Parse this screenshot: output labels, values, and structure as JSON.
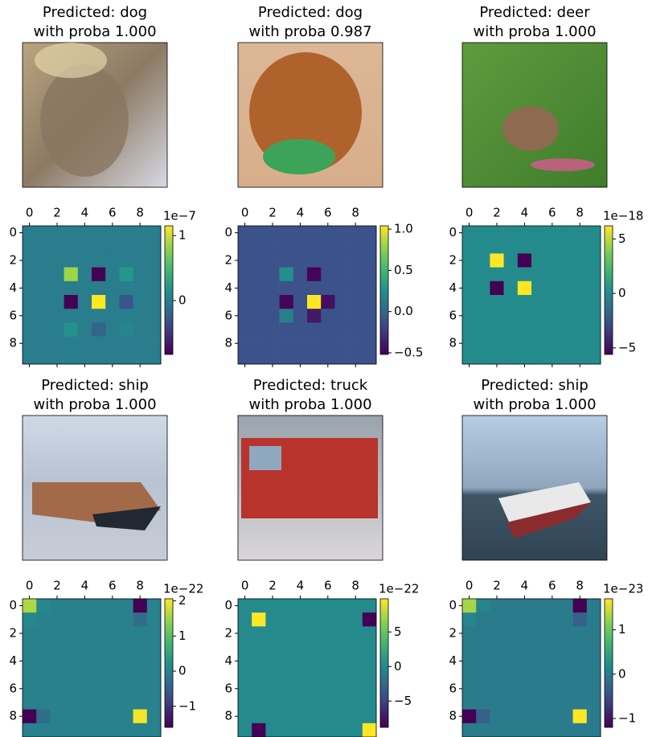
{
  "chart_data": [
    {
      "type": "image",
      "title_lines": [
        "Predicted: dog",
        "with proba 1.000"
      ]
    },
    {
      "type": "image",
      "title_lines": [
        "Predicted: dog",
        "with proba 0.987"
      ]
    },
    {
      "type": "image",
      "title_lines": [
        "Predicted: deer",
        "with proba 1.000"
      ]
    },
    {
      "type": "heatmap",
      "colormap": "viridis",
      "xlim": [
        -0.5,
        9.5
      ],
      "ylim": [
        9.5,
        -0.5
      ],
      "xticks": [
        0,
        2,
        4,
        6,
        8
      ],
      "yticks": [
        0,
        2,
        4,
        6,
        8
      ],
      "z": [
        [
          0,
          0,
          0,
          0,
          0,
          0,
          0,
          0,
          0,
          0
        ],
        [
          0,
          0,
          0,
          0,
          0,
          0,
          0,
          0,
          0,
          0
        ],
        [
          0,
          0,
          0,
          0,
          0,
          0,
          0,
          0,
          0,
          0
        ],
        [
          0,
          0,
          0,
          0.85,
          0,
          -0.83,
          0,
          0.2,
          0,
          0
        ],
        [
          0,
          0,
          0,
          0,
          0,
          0,
          0,
          0,
          0,
          0
        ],
        [
          0,
          0,
          0,
          -0.83,
          0,
          1.15,
          0,
          -0.3,
          0,
          0
        ],
        [
          0,
          0,
          0,
          0,
          0,
          0,
          0,
          0,
          0,
          0
        ],
        [
          0,
          0,
          0,
          0.15,
          0,
          -0.2,
          0,
          0.05,
          0,
          0
        ],
        [
          0,
          0,
          0,
          0,
          0,
          0,
          0,
          0,
          0,
          0
        ],
        [
          0,
          0,
          0,
          0,
          0,
          0,
          0,
          0,
          0,
          0
        ]
      ],
      "colorbar": {
        "lim": [
          -0.83,
          1.15
        ],
        "ticks": [
          0,
          1
        ],
        "offset_label": "1e−7"
      }
    },
    {
      "type": "heatmap",
      "colormap": "viridis",
      "xlim": [
        -0.5,
        9.5
      ],
      "ylim": [
        9.5,
        -0.5
      ],
      "xticks": [
        0,
        2,
        4,
        6,
        8
      ],
      "yticks": [
        0,
        2,
        4,
        6,
        8
      ],
      "z": [
        [
          -0.13,
          -0.13,
          -0.13,
          -0.13,
          -0.13,
          -0.13,
          -0.13,
          -0.13,
          -0.13,
          -0.13
        ],
        [
          -0.13,
          -0.13,
          -0.13,
          -0.13,
          -0.13,
          -0.13,
          -0.13,
          -0.13,
          -0.13,
          -0.13
        ],
        [
          -0.13,
          -0.13,
          -0.13,
          -0.13,
          -0.13,
          -0.13,
          -0.13,
          -0.13,
          -0.13,
          -0.13
        ],
        [
          -0.13,
          -0.13,
          -0.13,
          0.25,
          -0.13,
          -0.5,
          -0.13,
          -0.13,
          -0.13,
          -0.13
        ],
        [
          -0.13,
          -0.13,
          -0.13,
          -0.13,
          -0.13,
          -0.13,
          -0.13,
          -0.13,
          -0.13,
          -0.13
        ],
        [
          -0.13,
          -0.13,
          -0.13,
          -0.5,
          -0.13,
          1.04,
          -0.45,
          -0.13,
          -0.13,
          -0.13
        ],
        [
          -0.13,
          -0.13,
          -0.13,
          0.15,
          -0.13,
          -0.4,
          -0.13,
          -0.13,
          -0.13,
          -0.13
        ],
        [
          -0.13,
          -0.13,
          -0.13,
          -0.13,
          -0.13,
          -0.13,
          -0.13,
          -0.13,
          -0.13,
          -0.13
        ],
        [
          -0.13,
          -0.13,
          -0.13,
          -0.13,
          -0.13,
          -0.13,
          -0.13,
          -0.13,
          -0.13,
          -0.13
        ],
        [
          -0.13,
          -0.13,
          -0.13,
          -0.13,
          -0.13,
          -0.13,
          -0.13,
          -0.13,
          -0.13,
          -0.13
        ]
      ],
      "colorbar": {
        "lim": [
          -0.52,
          1.04
        ],
        "ticks": [
          {
            "value": -0.5,
            "label": "−0.5"
          },
          {
            "value": 0,
            "label": "0.0"
          },
          {
            "value": 0.5,
            "label": "0.5"
          },
          {
            "value": 1,
            "label": "1.0"
          }
        ]
      }
    },
    {
      "type": "heatmap",
      "colormap": "viridis",
      "xlim": [
        -0.5,
        9.5
      ],
      "ylim": [
        9.5,
        -0.5
      ],
      "xticks": [
        0,
        2,
        4,
        6,
        8
      ],
      "yticks": [
        0,
        2,
        4,
        6,
        8
      ],
      "z": [
        [
          0,
          0,
          0,
          0,
          0,
          0,
          0,
          0,
          0,
          0
        ],
        [
          0,
          0,
          0,
          0,
          0,
          0,
          0,
          0,
          0,
          0
        ],
        [
          0,
          0,
          6.2,
          0,
          -5.6,
          0,
          0,
          0,
          0,
          0
        ],
        [
          0,
          0,
          0,
          0,
          0,
          0,
          0,
          0,
          0,
          0
        ],
        [
          0,
          0,
          -5.6,
          0,
          6.2,
          0,
          0,
          0,
          0,
          0
        ],
        [
          0,
          0,
          0,
          0,
          0,
          0,
          0,
          0,
          0,
          0
        ],
        [
          0,
          0,
          0,
          0,
          0,
          0,
          0,
          0,
          0,
          0
        ],
        [
          0,
          0,
          0,
          0,
          0,
          0,
          0,
          0,
          0,
          0
        ],
        [
          0,
          0,
          0,
          0,
          0,
          0,
          0,
          0,
          0,
          0
        ],
        [
          0,
          0,
          0,
          0,
          0,
          0,
          0,
          0,
          0,
          0
        ]
      ],
      "colorbar": {
        "lim": [
          -5.6,
          6.2
        ],
        "ticks": [
          {
            "value": -5,
            "label": "−5"
          },
          0,
          5
        ],
        "offset_label": "1e−18"
      }
    },
    {
      "type": "image",
      "title_lines": [
        "Predicted: ship",
        "with proba 1.000"
      ]
    },
    {
      "type": "image",
      "title_lines": [
        "Predicted: truck",
        "with proba 1.000"
      ]
    },
    {
      "type": "image",
      "title_lines": [
        "Predicted: ship",
        "with proba 1.000"
      ]
    },
    {
      "type": "heatmap",
      "colormap": "viridis",
      "xlim": [
        -0.5,
        9.5
      ],
      "ylim": [
        9.5,
        -0.5
      ],
      "xticks": [
        0,
        2,
        4,
        6,
        8
      ],
      "yticks": [
        0,
        2,
        4,
        6,
        8
      ],
      "z": [
        [
          1.6,
          0.1,
          0,
          0,
          0,
          0,
          0,
          0,
          -1.6,
          0
        ],
        [
          0.1,
          0,
          0,
          0,
          0,
          0,
          0,
          0,
          -0.3,
          0
        ],
        [
          0,
          0,
          0,
          0,
          0,
          0,
          0,
          0,
          0,
          0
        ],
        [
          0,
          0,
          0,
          0,
          0,
          0,
          0,
          0,
          0,
          0
        ],
        [
          0,
          0,
          0,
          0,
          0,
          0,
          0,
          0,
          0,
          0
        ],
        [
          0,
          0,
          0,
          0,
          0,
          0,
          0,
          0,
          0,
          0
        ],
        [
          0,
          0,
          0,
          0,
          0,
          0,
          0,
          0,
          0,
          0
        ],
        [
          0,
          0,
          0,
          0,
          0,
          0,
          0,
          0,
          0,
          0
        ],
        [
          -1.6,
          -0.3,
          0,
          0,
          0,
          0,
          0,
          0,
          2,
          0
        ],
        [
          0,
          0,
          0,
          0,
          0,
          0,
          0,
          0,
          0,
          0
        ]
      ],
      "colorbar": {
        "lim": [
          -1.6,
          2.06
        ],
        "ticks": [
          {
            "value": -1,
            "label": "−1"
          },
          0,
          1,
          2
        ],
        "offset_label": "1e−22"
      }
    },
    {
      "type": "heatmap",
      "colormap": "viridis",
      "xlim": [
        -0.5,
        9.5
      ],
      "ylim": [
        9.5,
        -0.5
      ],
      "xticks": [
        0,
        2,
        4,
        6,
        8
      ],
      "yticks": [
        0,
        2,
        4,
        6,
        8
      ],
      "z": [
        [
          0,
          0,
          0,
          0,
          0,
          0,
          0,
          0,
          0,
          0
        ],
        [
          0,
          9.8,
          0,
          0,
          0,
          0,
          0,
          0,
          0,
          -8.8
        ],
        [
          0,
          0,
          0,
          0,
          0,
          0,
          0,
          0,
          0,
          0
        ],
        [
          0,
          0,
          0,
          0,
          0,
          0,
          0,
          0,
          0,
          0
        ],
        [
          0,
          0,
          0,
          0,
          0,
          0,
          0,
          0,
          0,
          0
        ],
        [
          0,
          0,
          0,
          0,
          0,
          0,
          0,
          0,
          0,
          0
        ],
        [
          0,
          0,
          0,
          0,
          0,
          0,
          0,
          0,
          0,
          0
        ],
        [
          0,
          0,
          0,
          0,
          0,
          0,
          0,
          0,
          0,
          0
        ],
        [
          0,
          0,
          0,
          0,
          0,
          0,
          0,
          0,
          0,
          0
        ],
        [
          0,
          -8.8,
          0,
          0,
          0,
          0,
          0,
          0,
          0,
          9.8
        ]
      ],
      "colorbar": {
        "lim": [
          -8.8,
          9.8
        ],
        "ticks": [
          {
            "value": -5,
            "label": "−5"
          },
          0,
          5
        ],
        "offset_label": "1e−22"
      }
    },
    {
      "type": "heatmap",
      "colormap": "viridis",
      "xlim": [
        -0.5,
        9.5
      ],
      "ylim": [
        9.5,
        -0.5
      ],
      "xticks": [
        0,
        2,
        4,
        6,
        8
      ],
      "yticks": [
        0,
        2,
        4,
        6,
        8
      ],
      "z": [
        [
          1.3,
          0.1,
          0,
          0,
          0,
          0,
          0,
          0,
          -1.2,
          0
        ],
        [
          0.1,
          0,
          0,
          0,
          0,
          0,
          0,
          0,
          -0.3,
          0
        ],
        [
          0,
          0,
          0,
          0,
          0,
          0,
          0,
          0,
          0,
          0
        ],
        [
          0,
          0,
          0,
          0,
          0,
          0,
          0,
          0,
          0,
          0
        ],
        [
          0,
          0,
          0,
          0,
          0,
          0,
          0,
          0,
          0,
          0
        ],
        [
          0,
          0,
          0,
          0,
          0,
          0,
          0,
          0,
          0,
          0
        ],
        [
          0,
          0,
          0,
          0,
          0,
          0,
          0,
          0,
          0,
          0
        ],
        [
          0,
          0,
          0,
          0,
          0,
          0,
          0,
          0,
          0,
          0
        ],
        [
          -1.2,
          -0.3,
          0,
          0,
          0,
          0,
          0,
          0,
          1.7,
          0
        ],
        [
          0,
          0,
          0,
          0,
          0,
          0,
          0,
          0,
          0,
          0
        ]
      ],
      "colorbar": {
        "lim": [
          -1.2,
          1.7
        ],
        "ticks": [
          {
            "value": -1,
            "label": "−1"
          },
          0,
          1
        ],
        "offset_label": "1e−23"
      }
    }
  ]
}
